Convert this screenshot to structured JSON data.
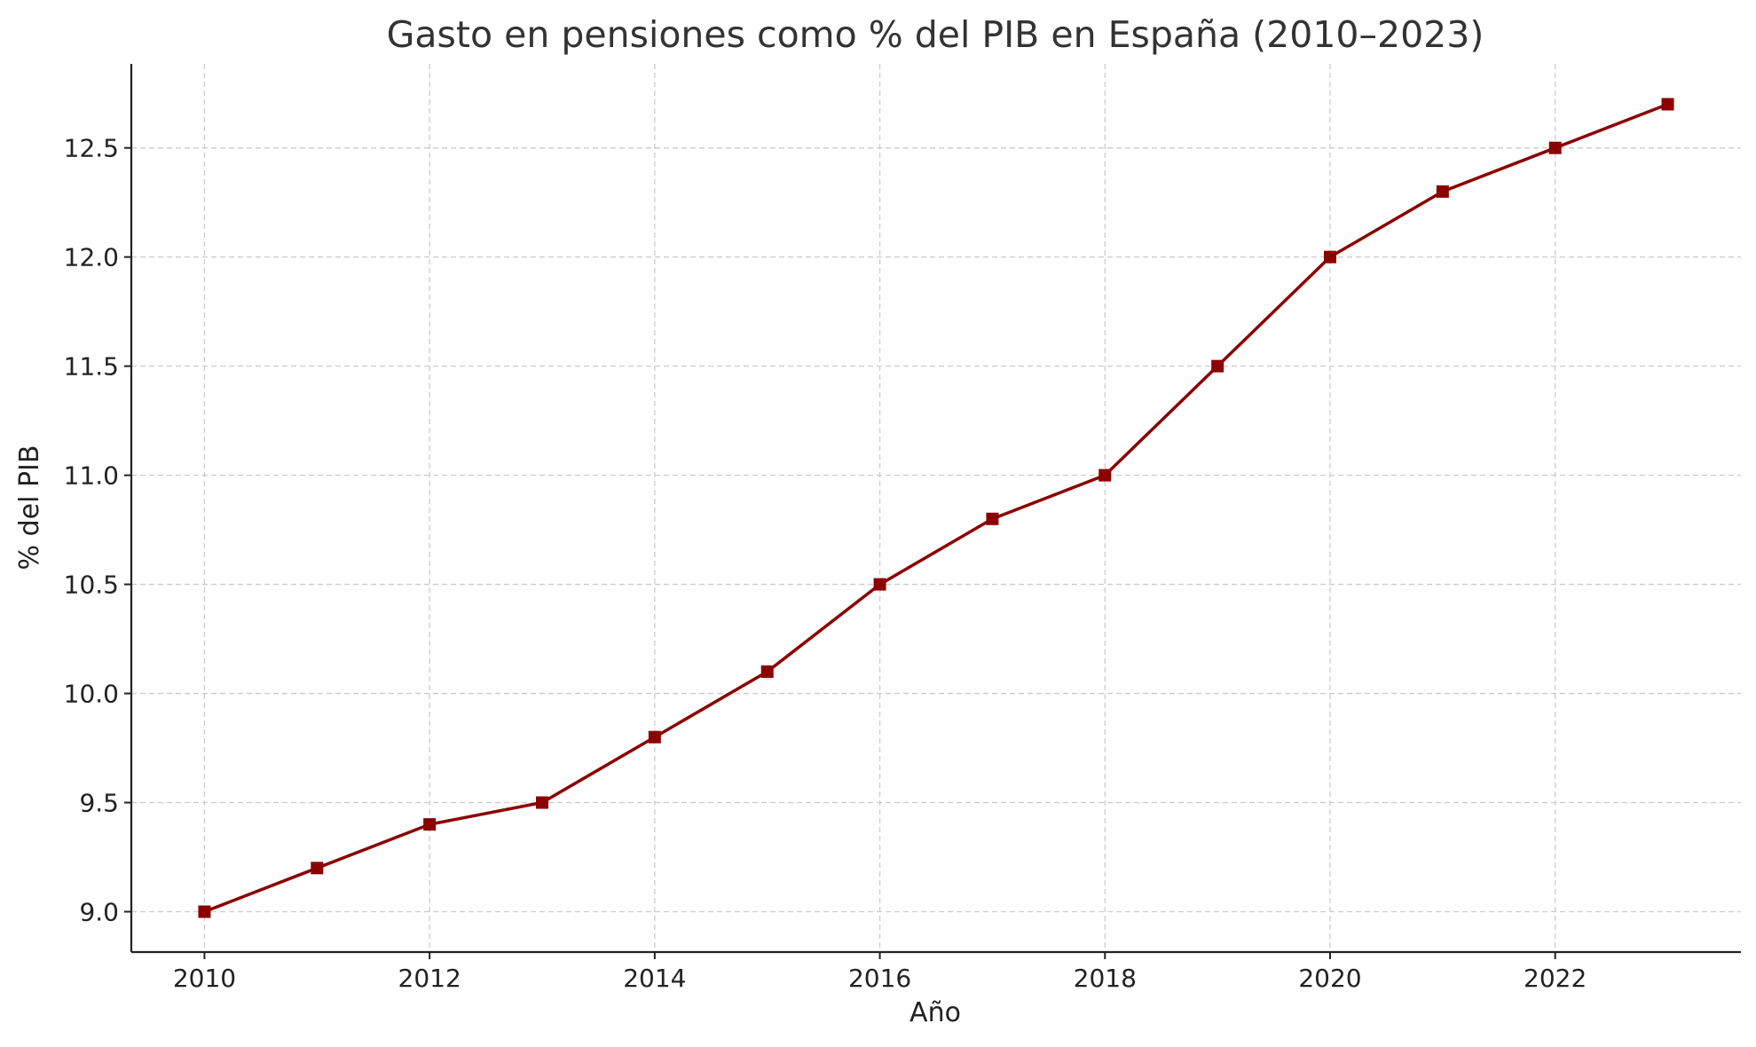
{
  "chart_data": {
    "type": "line",
    "title": "Gasto en pensiones como % del PIB en España (2010–2023)",
    "xlabel": "Año",
    "ylabel": "% del PIB",
    "x": [
      2010,
      2011,
      2012,
      2013,
      2014,
      2015,
      2016,
      2017,
      2018,
      2019,
      2020,
      2021,
      2022,
      2023
    ],
    "series": [
      {
        "values": [
          9.0,
          9.2,
          9.4,
          9.5,
          9.8,
          10.1,
          10.5,
          10.8,
          11.0,
          11.5,
          12.0,
          12.3,
          12.5,
          12.7
        ],
        "color": "#8b0000",
        "marker": "square"
      }
    ],
    "xticks": [
      "2010",
      "2012",
      "2014",
      "2016",
      "2018",
      "2020",
      "2022"
    ],
    "yticks": [
      "9.0",
      "9.5",
      "10.0",
      "10.5",
      "11.0",
      "11.5",
      "12.0",
      "12.5"
    ],
    "xlim": [
      2009.35,
      2023.65
    ],
    "ylim": [
      8.815,
      12.885
    ],
    "grid": true,
    "legend": "none"
  }
}
